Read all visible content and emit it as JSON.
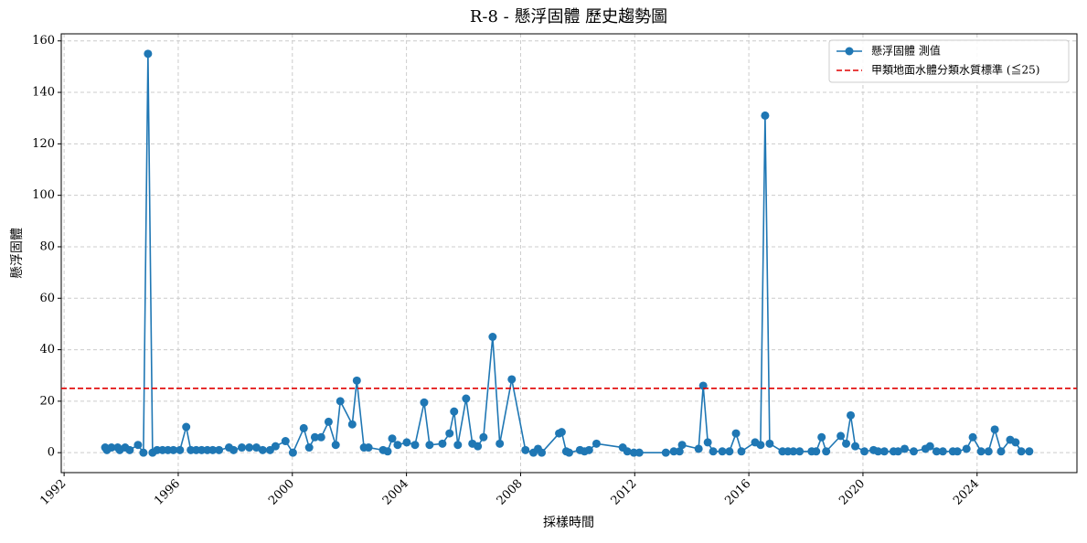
{
  "chart_data": {
    "type": "line",
    "title": "R-8 - 懸浮固體 歷史趨勢圖",
    "x_label": "採樣時間",
    "y_label": "懸浮固體",
    "x": [
      1993.44,
      1993.5,
      1993.66,
      1993.88,
      1993.95,
      1994.14,
      1994.3,
      1994.59,
      1994.78,
      1994.94,
      1995.1,
      1995.26,
      1995.45,
      1995.64,
      1995.83,
      1996.06,
      1996.28,
      1996.44,
      1996.63,
      1996.82,
      1997.02,
      1997.21,
      1997.43,
      1997.78,
      1997.94,
      1998.23,
      1998.49,
      1998.74,
      1998.96,
      1999.22,
      1999.41,
      1999.76,
      2000.02,
      2000.4,
      2000.59,
      2000.79,
      2001.01,
      2001.27,
      2001.52,
      2001.68,
      2002.1,
      2002.26,
      2002.51,
      2002.67,
      2003.18,
      2003.34,
      2003.5,
      2003.69,
      2004.01,
      2004.3,
      2004.62,
      2004.81,
      2005.26,
      2005.51,
      2005.67,
      2005.8,
      2006.09,
      2006.31,
      2006.5,
      2006.7,
      2007.02,
      2007.27,
      2007.69,
      2008.17,
      2008.45,
      2008.61,
      2008.74,
      2009.35,
      2009.44,
      2009.6,
      2009.7,
      2010.08,
      2010.24,
      2010.4,
      2010.66,
      2011.58,
      2011.74,
      2011.97,
      2012.16,
      2013.09,
      2013.37,
      2013.57,
      2013.66,
      2014.24,
      2014.4,
      2014.56,
      2014.75,
      2015.07,
      2015.32,
      2015.55,
      2015.74,
      2016.22,
      2016.41,
      2016.57,
      2016.73,
      2017.18,
      2017.37,
      2017.56,
      2017.78,
      2018.2,
      2018.36,
      2018.55,
      2018.71,
      2019.22,
      2019.41,
      2019.57,
      2019.73,
      2020.05,
      2020.37,
      2020.53,
      2020.75,
      2021.07,
      2021.23,
      2021.46,
      2021.78,
      2022.19,
      2022.35,
      2022.58,
      2022.8,
      2023.15,
      2023.31,
      2023.63,
      2023.85,
      2024.14,
      2024.4,
      2024.62,
      2024.84,
      2025.16,
      2025.35,
      2025.55,
      2025.83
    ],
    "series": [
      {
        "name": "懸浮固體 測值",
        "color": "#1f77b4",
        "values": [
          2,
          1,
          2,
          2,
          1,
          2,
          1,
          3,
          0,
          155,
          0,
          1,
          1,
          1,
          1,
          1,
          10,
          1,
          1,
          1,
          1,
          1,
          1,
          2,
          1,
          2,
          2,
          2,
          1,
          1,
          2.5,
          4.5,
          0,
          9.5,
          2,
          6,
          6,
          12,
          3,
          20,
          11,
          28,
          2,
          2,
          1,
          0.5,
          5.5,
          3,
          4,
          3,
          19.5,
          3,
          3.5,
          7.5,
          16,
          3,
          21,
          3.5,
          2.5,
          6,
          45,
          3.5,
          28.5,
          1,
          0,
          1.5,
          0,
          7.5,
          8,
          0.5,
          0,
          1,
          0.5,
          1,
          3.5,
          2,
          0.5,
          0,
          0,
          0,
          0.5,
          0.5,
          3,
          1.5,
          26,
          4,
          0.5,
          0.5,
          0.5,
          7.5,
          0.5,
          4,
          3,
          131,
          3.5,
          0.5,
          0.5,
          0.5,
          0.5,
          0.5,
          0.5,
          6,
          0.5,
          6.5,
          3.5,
          14.5,
          2.5,
          0.5,
          1,
          0.5,
          0.5,
          0.5,
          0.5,
          1.5,
          0.5,
          1.5,
          2.5,
          0.5,
          0.5,
          0.5,
          0.5,
          1.5,
          6,
          0.5,
          0.5,
          9,
          0.5,
          5,
          4,
          0.5,
          0.5
        ]
      }
    ],
    "reference_line": {
      "name": "甲類地面水體分類水質標準 (≦25)",
      "value": 25,
      "color": "#e00000"
    },
    "xlim": [
      1991.9,
      2027.5
    ],
    "xticks": [
      1992,
      1996,
      2000,
      2004,
      2008,
      2012,
      2016,
      2020,
      2024
    ],
    "ylim": [
      -7.75,
      162.75
    ],
    "yticks": [
      0,
      20,
      40,
      60,
      80,
      100,
      120,
      140,
      160
    ],
    "grid": true,
    "legend": "upper right"
  }
}
